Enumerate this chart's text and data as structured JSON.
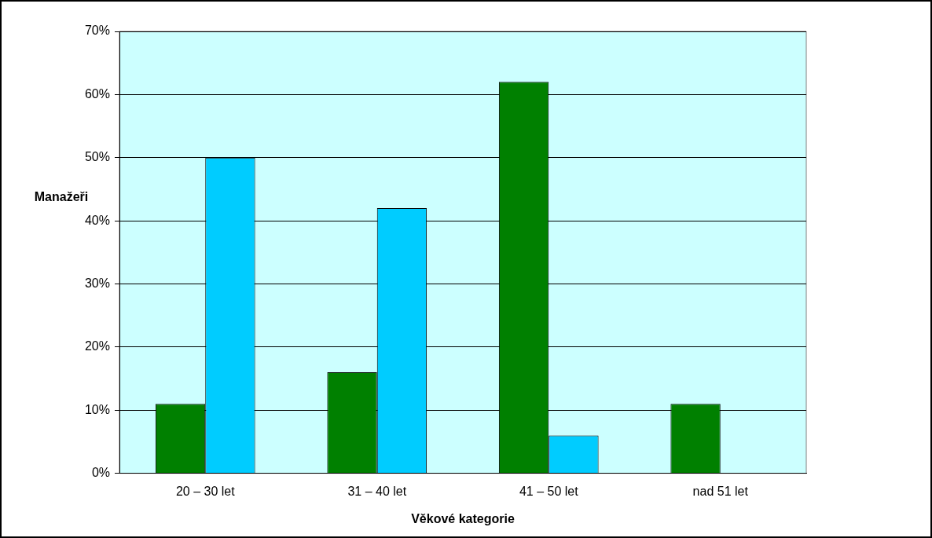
{
  "chart_data": {
    "type": "bar",
    "xlabel": "Věkové kategorie",
    "ylabel": "Manažeři",
    "categories": [
      "20 – 30 let",
      "31 – 40 let",
      "41 – 50 let",
      "nad 51 let"
    ],
    "series": [
      {
        "color": "#008000",
        "values": [
          11,
          16,
          62,
          11
        ]
      },
      {
        "color": "#00ccff",
        "values": [
          50,
          42,
          6,
          0
        ]
      }
    ],
    "ylim": [
      0,
      70
    ],
    "yticks": [
      {
        "value": 0,
        "label": "0%"
      },
      {
        "value": 10,
        "label": "10%"
      },
      {
        "value": 20,
        "label": "20%"
      },
      {
        "value": 30,
        "label": "30%"
      },
      {
        "value": 40,
        "label": "40%"
      },
      {
        "value": 50,
        "label": "50%"
      },
      {
        "value": 60,
        "label": "60%"
      },
      {
        "value": 70,
        "label": "70%"
      }
    ],
    "grid": "y"
  }
}
